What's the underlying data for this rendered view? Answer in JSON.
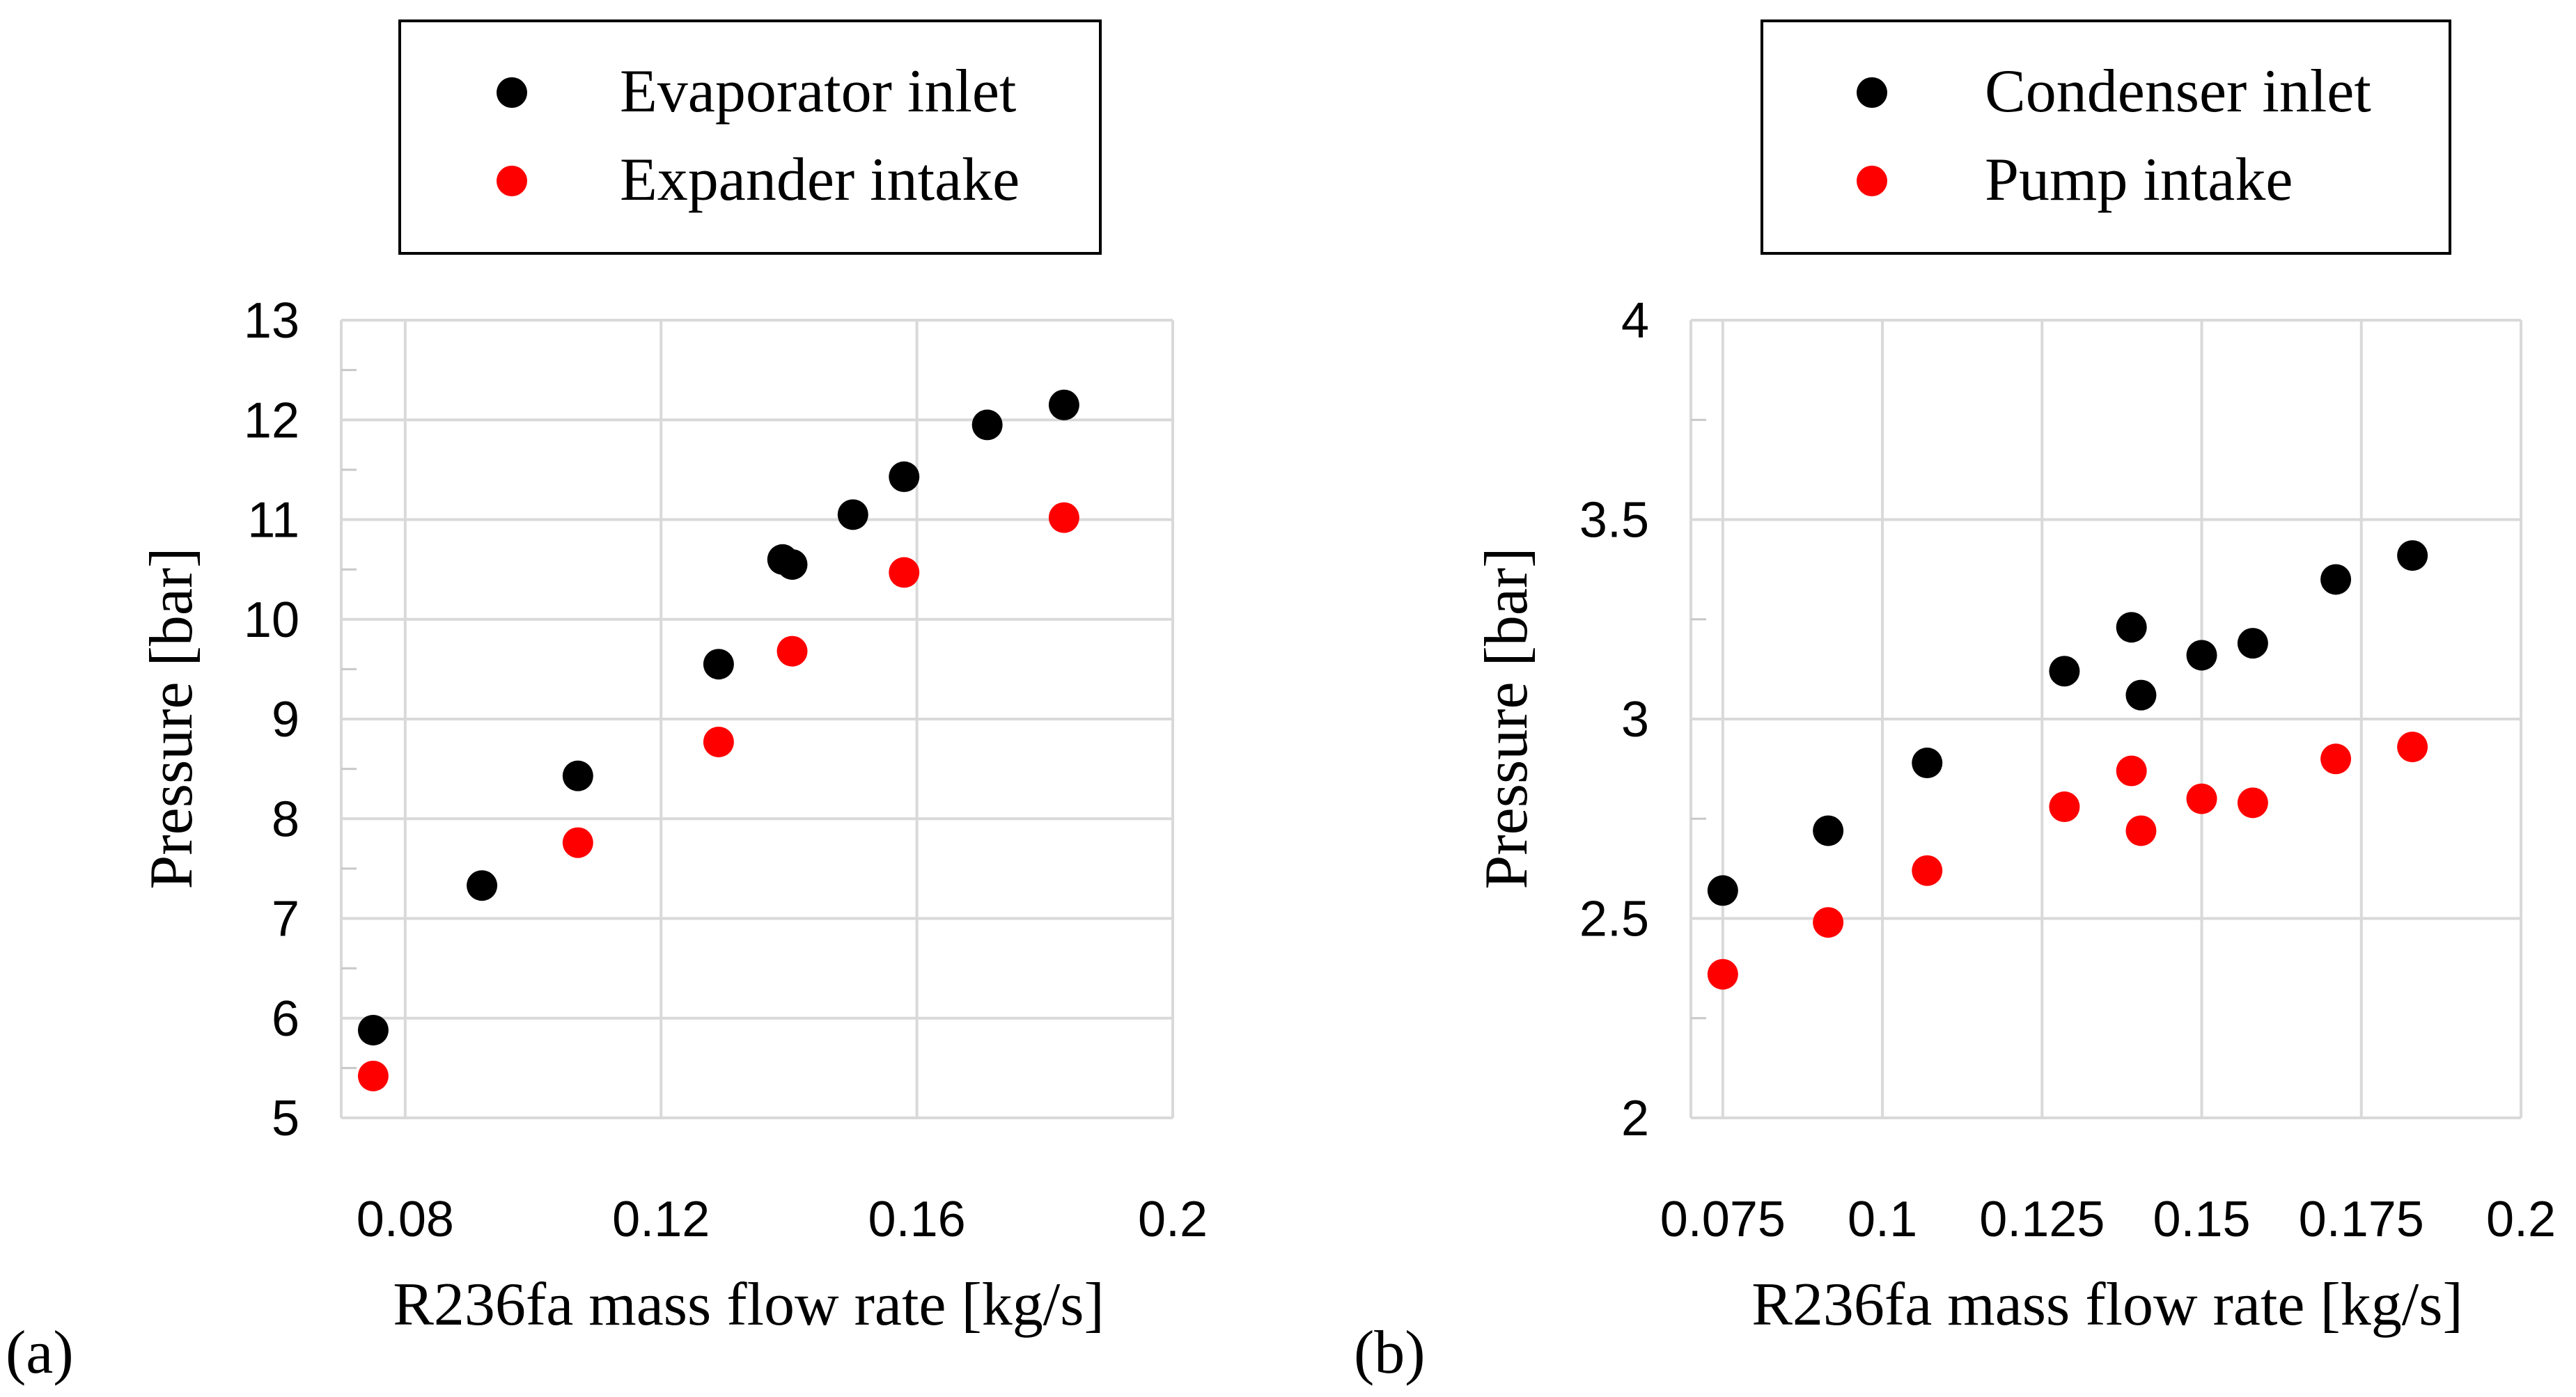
{
  "chart_data": [
    {
      "type": "scatter",
      "panel_label": "(a)",
      "xlabel": "R236fa mass flow rate [kg/s]",
      "ylabel": "Pressure [bar]",
      "xlim": [
        0.07,
        0.2
      ],
      "ylim": [
        5,
        13
      ],
      "xticks": [
        "0.08",
        "0.12",
        "0.16",
        "0.2"
      ],
      "yticks": [
        "5",
        "6",
        "7",
        "8",
        "9",
        "10",
        "11",
        "12",
        "13"
      ],
      "grid": true,
      "legend_position": "top",
      "series": [
        {
          "name": "Evaporator inlet",
          "color": "#000000",
          "points": [
            [
              0.075,
              5.88
            ],
            [
              0.092,
              7.33
            ],
            [
              0.107,
              8.43
            ],
            [
              0.129,
              9.55
            ],
            [
              0.139,
              10.6
            ],
            [
              0.1405,
              10.55
            ],
            [
              0.15,
              11.05
            ],
            [
              0.158,
              11.43
            ],
            [
              0.171,
              11.95
            ],
            [
              0.183,
              12.15
            ]
          ]
        },
        {
          "name": "Expander intake",
          "color": "#ff0000",
          "points": [
            [
              0.075,
              5.42
            ],
            [
              0.107,
              7.76
            ],
            [
              0.129,
              8.77
            ],
            [
              0.1405,
              9.68
            ],
            [
              0.158,
              10.47
            ],
            [
              0.183,
              11.02
            ]
          ]
        }
      ]
    },
    {
      "type": "scatter",
      "panel_label": "(b)",
      "xlabel": "R236fa mass flow rate [kg/s]",
      "ylabel": "Pressure [bar]",
      "xlim": [
        0.07,
        0.2
      ],
      "ylim": [
        2,
        4
      ],
      "xticks": [
        "0.075",
        "0.1",
        "0.125",
        "0.15",
        "0.175",
        "0.2"
      ],
      "yticks": [
        "2",
        "2.5",
        "3",
        "3.5",
        "4"
      ],
      "grid": true,
      "legend_position": "top",
      "series": [
        {
          "name": "Condenser inlet",
          "color": "#000000",
          "points": [
            [
              0.075,
              2.57
            ],
            [
              0.0915,
              2.72
            ],
            [
              0.107,
              2.89
            ],
            [
              0.1285,
              3.12
            ],
            [
              0.139,
              3.23
            ],
            [
              0.1405,
              3.06
            ],
            [
              0.15,
              3.16
            ],
            [
              0.158,
              3.19
            ],
            [
              0.171,
              3.35
            ],
            [
              0.183,
              3.41
            ]
          ]
        },
        {
          "name": "Pump intake",
          "color": "#ff0000",
          "points": [
            [
              0.075,
              2.36
            ],
            [
              0.0915,
              2.49
            ],
            [
              0.107,
              2.62
            ],
            [
              0.1285,
              2.78
            ],
            [
              0.139,
              2.87
            ],
            [
              0.1405,
              2.72
            ],
            [
              0.15,
              2.8
            ],
            [
              0.158,
              2.79
            ],
            [
              0.171,
              2.9
            ],
            [
              0.183,
              2.93
            ]
          ]
        }
      ]
    }
  ]
}
